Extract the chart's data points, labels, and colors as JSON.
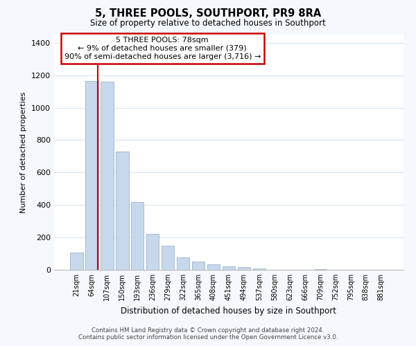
{
  "title": "5, THREE POOLS, SOUTHPORT, PR9 8RA",
  "subtitle": "Size of property relative to detached houses in Southport",
  "xlabel": "Distribution of detached houses by size in Southport",
  "ylabel": "Number of detached properties",
  "bar_labels": [
    "21sqm",
    "64sqm",
    "107sqm",
    "150sqm",
    "193sqm",
    "236sqm",
    "279sqm",
    "322sqm",
    "365sqm",
    "408sqm",
    "451sqm",
    "494sqm",
    "537sqm",
    "580sqm",
    "623sqm",
    "666sqm",
    "709sqm",
    "752sqm",
    "795sqm",
    "838sqm",
    "881sqm"
  ],
  "bar_heights": [
    105,
    1165,
    1160,
    730,
    420,
    220,
    150,
    75,
    50,
    35,
    20,
    15,
    10,
    0,
    0,
    0,
    5,
    0,
    0,
    0,
    0
  ],
  "bar_color": "#c8d8ec",
  "bar_edge_color": "#9ab4cc",
  "vline_x_index": 1.42,
  "vline_color": "#cc0000",
  "ylim": [
    0,
    1450
  ],
  "yticks": [
    0,
    200,
    400,
    600,
    800,
    1000,
    1200,
    1400
  ],
  "annotation_title": "5 THREE POOLS: 78sqm",
  "annotation_line1": "← 9% of detached houses are smaller (379)",
  "annotation_line2": "90% of semi-detached houses are larger (3,716) →",
  "annotation_box_color": "#ffffff",
  "annotation_box_edge": "#cc0000",
  "footer_line1": "Contains HM Land Registry data © Crown copyright and database right 2024.",
  "footer_line2": "Contains public sector information licensed under the Open Government Licence v3.0.",
  "bg_color": "#f5f8fc",
  "plot_bg_color": "#ffffff",
  "grid_color": "#d8e4f0"
}
